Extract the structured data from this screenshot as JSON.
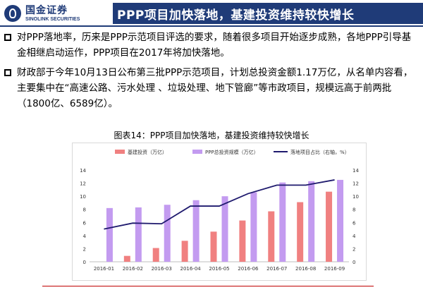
{
  "header": {
    "logo_cn": "国金证券",
    "logo_en": "SINOLINK SECURITIES",
    "title": "PPP项目加快落地，基建投资维持较快增长"
  },
  "bullets": [
    "对PPP落地率，历来是PPP示范项目评选的要求，随着很多项目开始逐步成熟，各地PPP引导基金相继启动运作，PPP项目在2017年将加快落地。",
    "财政部于今年10月13日公布第三批PPP示范项目，计划总投资金额1.17万亿，从名单内容看，主要集中在“高速公路、污水处理 、垃圾处理、地下管廊”等市政项目，规模远高于前两批（1800亿、6589亿）。"
  ],
  "chart_caption": "图表14：PPP项目加快落地，基建投资维持较快增长",
  "chart_data": {
    "type": "bar",
    "categories": [
      "2016-01",
      "2016-02",
      "2016-03",
      "2016-04",
      "2016-05",
      "2016-06",
      "2016-07",
      "2016-08",
      "2016-09"
    ],
    "series": [
      {
        "name": "基建投资（万亿）",
        "type": "bar",
        "axis": "left",
        "color": "#f08080",
        "values": [
          0.0,
          0.9,
          2.1,
          3.2,
          4.6,
          6.3,
          7.7,
          9.1,
          10.7
        ]
      },
      {
        "name": "PPP总投资规模（万亿）",
        "type": "bar",
        "axis": "left",
        "color": "#c39bf0",
        "values": [
          8.2,
          8.3,
          8.7,
          9.4,
          10.0,
          10.6,
          12.1,
          12.3,
          12.5
        ]
      },
      {
        "name": "落地项目占比（右轴，%）",
        "type": "line",
        "axis": "right",
        "color": "#1f1a6e",
        "values": [
          5.0,
          5.9,
          5.8,
          8.5,
          8.5,
          10.4,
          11.7,
          11.7,
          12.5
        ]
      }
    ],
    "ylim": [
      0,
      14
    ],
    "y2lim": [
      0,
      14
    ],
    "yticks": [
      0,
      2,
      4,
      6,
      8,
      10,
      12,
      14
    ],
    "legend_position": "top",
    "grid": false
  }
}
